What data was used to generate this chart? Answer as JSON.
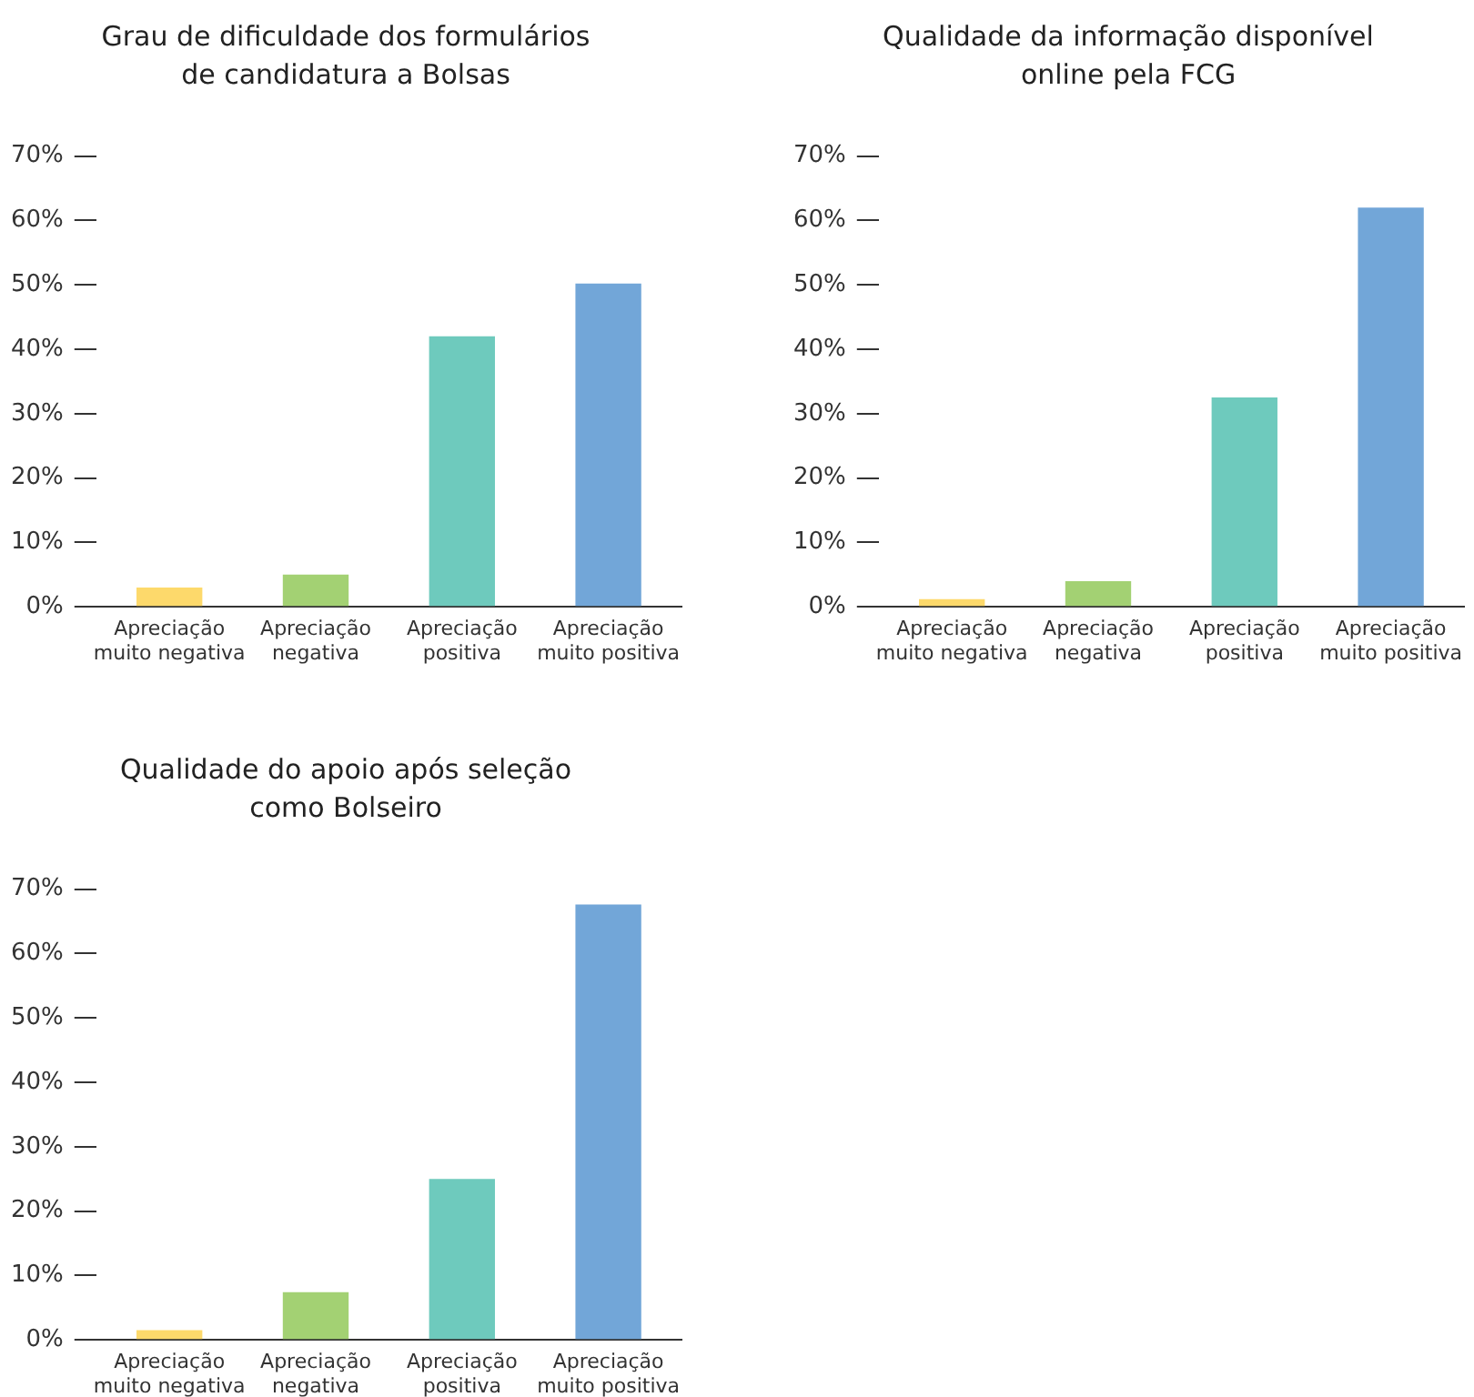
{
  "chart_data": [
    {
      "type": "bar",
      "title": "Grau de dificuldade dos formulários\nde candidatura a Bolsas",
      "categories": [
        "Apreciação muito negativa",
        "Apreciação negativa",
        "Apreciação positiva",
        "Apreciação muito positiva"
      ],
      "values": [
        3,
        5,
        42,
        50.2
      ],
      "colors": [
        "#fdd96b",
        "#a3d173",
        "#6ecabd",
        "#72a6d8"
      ],
      "ylim": [
        0,
        70
      ],
      "yticks": [
        {
          "value": 0,
          "label": "0%"
        },
        {
          "value": 10,
          "label": "10%"
        },
        {
          "value": 20,
          "label": "20%"
        },
        {
          "value": 30,
          "label": "30%"
        },
        {
          "value": 40,
          "label": "40%"
        },
        {
          "value": 50,
          "label": "50%"
        },
        {
          "value": 60,
          "label": "60%"
        },
        {
          "value": 70,
          "label": "70%"
        }
      ],
      "grid": false,
      "legend": false
    },
    {
      "type": "bar",
      "title": "Qualidade da informação disponível\nonline pela FCG",
      "categories": [
        "Apreciação muito negativa",
        "Apreciação negativa",
        "Apreciação positiva",
        "Apreciação muito positiva"
      ],
      "values": [
        1.2,
        4,
        32.5,
        62
      ],
      "colors": [
        "#fdd96b",
        "#a3d173",
        "#6ecabd",
        "#72a6d8"
      ],
      "ylim": [
        0,
        70
      ],
      "yticks": [
        {
          "value": 0,
          "label": "0%"
        },
        {
          "value": 10,
          "label": "10%"
        },
        {
          "value": 20,
          "label": "20%"
        },
        {
          "value": 30,
          "label": "30%"
        },
        {
          "value": 40,
          "label": "40%"
        },
        {
          "value": 50,
          "label": "50%"
        },
        {
          "value": 60,
          "label": "60%"
        },
        {
          "value": 70,
          "label": "70%"
        }
      ],
      "grid": false,
      "legend": false
    },
    {
      "type": "bar",
      "title": "Qualidade do apoio após seleção\ncomo Bolseiro",
      "categories": [
        "Apreciação muito negativa",
        "Apreciação negativa",
        "Apreciação positiva",
        "Apreciação muito positiva"
      ],
      "values": [
        1.5,
        7.4,
        25,
        67.6
      ],
      "colors": [
        "#fdd96b",
        "#a3d173",
        "#6ecabd",
        "#72a6d8"
      ],
      "ylim": [
        0,
        70
      ],
      "yticks": [
        {
          "value": 0,
          "label": "0%"
        },
        {
          "value": 10,
          "label": "10%"
        },
        {
          "value": 20,
          "label": "20%"
        },
        {
          "value": 30,
          "label": "30%"
        },
        {
          "value": 40,
          "label": "40%"
        },
        {
          "value": 50,
          "label": "50%"
        },
        {
          "value": 60,
          "label": "60%"
        },
        {
          "value": 70,
          "label": "70%"
        }
      ],
      "grid": false,
      "legend": false
    }
  ]
}
